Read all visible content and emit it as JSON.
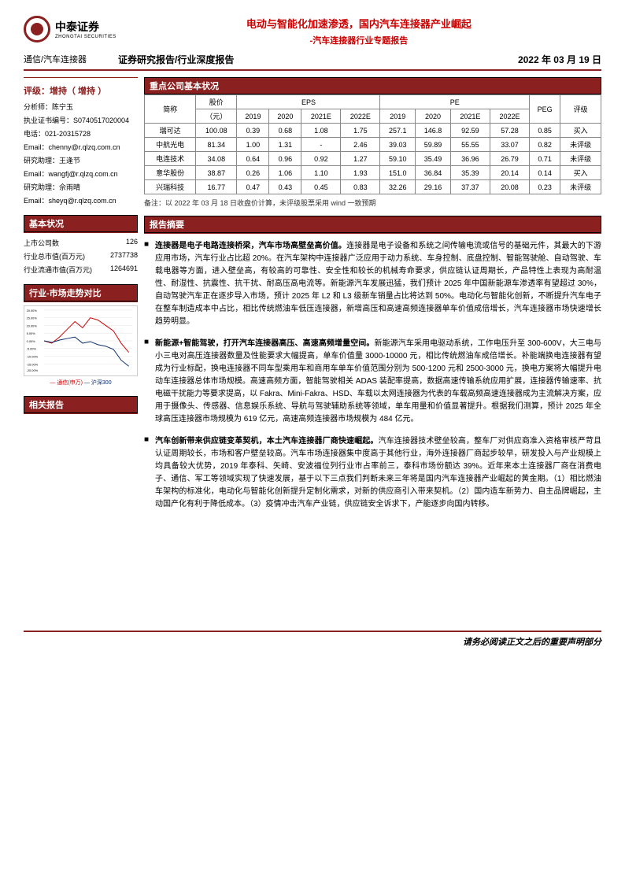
{
  "logo": {
    "cn": "中泰证券",
    "en": "ZHONGTAI SECURITIES"
  },
  "title": {
    "main": "电动与智能化加速渗透，国内汽车连接器产业崛起",
    "sub": "-汽车连接器行业专题报告"
  },
  "meta": {
    "category": "通信/汽车连接器",
    "report_type": "证券研究报告/行业深度报告",
    "date": "2022 年 03 月 19 日"
  },
  "rating": {
    "title": "评级：增持（ 增持 ）",
    "analyst_label": "分析师：陈宁玉",
    "license_label": "执业证书编号：S0740517020004",
    "phone_label": "电话：021-20315728",
    "email1_label": "Email：chenny@r.qlzq.com.cn",
    "assist1_label": "研究助理：王逢节",
    "email2_label": "Email：wangfj@r.qlzq.com.cn",
    "assist2_label": "研究助理：佘雨晴",
    "email3_label": "Email：sheyq@r.qlzq.com.cn"
  },
  "basic": {
    "title": "基本状况",
    "rows": [
      {
        "k": "上市公司数",
        "v": "126"
      },
      {
        "k": "行业总市值(百万元)",
        "v": "2737738"
      },
      {
        "k": "行业流通市值(百万元)",
        "v": "1264691"
      }
    ]
  },
  "trend": {
    "title": "行业-市场走势对比",
    "legend1": "— 通信(申万)",
    "legend2": "— 沪深300",
    "y_labels": [
      "20.00%",
      "15.00%",
      "10.00%",
      "5.00%",
      "0.00%",
      "-5.00%",
      "-10.00%",
      "-15.00%",
      "-20.00%",
      "-25.00%"
    ],
    "x_labels": [
      "21-03",
      "21-05",
      "21-07",
      "21-09",
      "21-11",
      "22-01",
      "22-03"
    ],
    "line1_color": "#cc0000",
    "line2_color": "#0a2b6b",
    "grid_color": "#d0d0d0"
  },
  "related": {
    "title": "相关报告"
  },
  "companies": {
    "title": "重点公司基本状况",
    "top_headers": [
      "简称",
      "股价",
      "EPS",
      "PE",
      "PEG",
      "评级"
    ],
    "price_unit": "（元）",
    "years": [
      "2019",
      "2020",
      "2021E",
      "2022E"
    ],
    "rows": [
      {
        "name": "瑞可达",
        "price": "100.08",
        "eps": [
          "0.39",
          "0.68",
          "1.08",
          "1.75"
        ],
        "pe": [
          "257.1",
          "146.8",
          "92.59",
          "57.28"
        ],
        "peg": "0.85",
        "rating": "买入"
      },
      {
        "name": "中航光电",
        "price": "81.34",
        "eps": [
          "1.00",
          "1.31",
          "-",
          "2.46"
        ],
        "pe": [
          "39.03",
          "59.89",
          "55.55",
          "33.07"
        ],
        "peg": "0.82",
        "rating": "未评级"
      },
      {
        "name": "电连技术",
        "price": "34.08",
        "eps": [
          "0.64",
          "0.96",
          "0.92",
          "1.27"
        ],
        "pe": [
          "59.10",
          "35.49",
          "36.96",
          "26.79"
        ],
        "peg": "0.71",
        "rating": "未评级"
      },
      {
        "name": "意华股份",
        "price": "38.87",
        "eps": [
          "0.26",
          "1.06",
          "1.10",
          "1.93"
        ],
        "pe": [
          "151.0",
          "36.84",
          "35.39",
          "20.14"
        ],
        "peg": "0.14",
        "rating": "买入"
      },
      {
        "name": "兴瑞科技",
        "price": "16.77",
        "eps": [
          "0.47",
          "0.43",
          "0.45",
          "0.83"
        ],
        "pe": [
          "32.26",
          "29.16",
          "37.37",
          "20.08"
        ],
        "peg": "0.23",
        "rating": "未评级"
      }
    ],
    "note": "备注：以 2022 年 03 月 18 日收盘价计算，未评级股票采用 wind 一致预期"
  },
  "abstract": {
    "title": "报告摘要",
    "items": [
      {
        "lead": "连接器是电子电路连接桥梁，汽车市场高壁垒高价值。",
        "body": "连接器是电子设备和系统之间传输电流或信号的基础元件，其最大的下游应用市场，汽车行业占比超 20%。在汽车架构中连接器广泛应用于动力系统、车身控制、底盘控制、智能驾驶舱、自动驾驶、车载电器等方面，进入壁垒高，有较高的可靠性、安全性和较长的机械寿命要求，供应链认证周期长，产品特性上表现为高耐温性、耐湿性、抗震性、抗干扰、耐高压高电流等。新能源汽车发展迅猛，我们预计 2025 年中国新能源车渗透率有望超过 30%，自动驾驶汽车正在逐步导入市场，预计 2025 年 L2 和 L3 级新车销量占比将达到 50%。电动化与智能化创新，不断提升汽车电子在整车制造成本中占比，相比传统燃油车低压连接器，新增高压和高速高频连接器单车价值成倍增长，汽车连接器市场快速增长趋势明显。"
      },
      {
        "lead": "新能源+智能驾驶，打开汽车连接器高压、高速高频增量空间。",
        "body": "新能源汽车采用电驱动系统，工作电压升至 300-600V，大三电与小三电对高压连接器数量及性能要求大幅提高，单车价值量 3000-10000 元，相比传统燃油车成倍增长。补能端换电连接器有望成为行业标配，换电连接器不同车型乘用车和商用车单车价值范围分别为 500-1200 元和 2500-3000 元，换电方案将大幅提升电动车连接器总体市场规模。高速高频方面，智能驾驶相关 ADAS 装配率提高，数据高速传输系统应用扩展，连接器传输速率、抗电磁干扰能力等要求提高，以 Fakra、Mini-Fakra、HSD、车载以太网连接器为代表的车载高频高速连接器成为主流解决方案，应用于摄像头、传感器、信息娱乐系统、导航与驾驶辅助系统等领域，单车用量和价值显著提升。根据我们测算，预计 2025 年全球高压连接器市场规模为 619 亿元，高速高频连接器市场规模为 484 亿元。"
      },
      {
        "lead": "汽车创新带来供应链变革契机，本土汽车连接器厂商快速崛起。",
        "body": "汽车连接器技术壁垒较高，整车厂对供应商准入资格审核严苛且认证周期较长，市场和客户壁垒较高。汽车市场连接器集中度高于其他行业，海外连接器厂商起步较早，研发投入与产业规模上均具备较大优势，2019 年泰科、矢崎、安波福位列行业市占率前三，泰科市场份额达 39%。近年来本土连接器厂商在消费电子、通信、军工等领域实现了快速发展，基于以下三点我们判断未来三年将是国内汽车连接器产业崛起的黄金期。（1）相比燃油车架构的标准化，电动化与智能化创新提升定制化需求，对新的供应商引入带来契机。（2）国内造车新势力、自主品牌崛起，主动国产化有利于降低成本。（3）疫情冲击汽车产业链，供应链安全诉求下，产能逐步向国内转移。"
      }
    ]
  },
  "footer": "请务必阅读正文之后的重要声明部分",
  "colors": {
    "brand": "#8b2020",
    "red": "#c00"
  }
}
